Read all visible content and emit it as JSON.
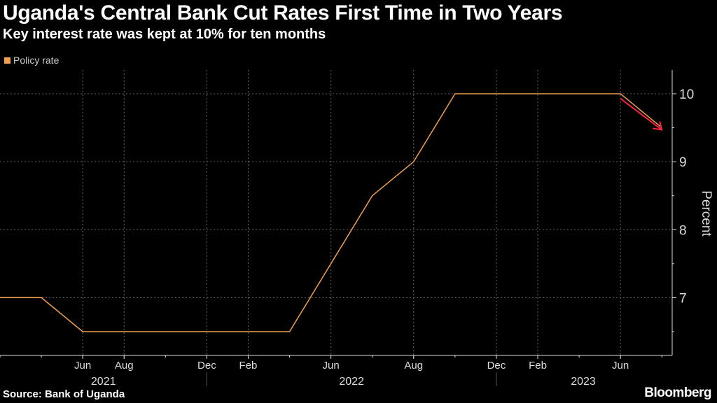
{
  "chart_data": {
    "type": "line",
    "title": "Uganda's Central Bank Cut Rates First Time in Two Years",
    "subtitle": "Key interest rate was kept at 10% for ten months",
    "legend": [
      "Policy rate"
    ],
    "legend_placement": "top-left",
    "ylabel": "Percent",
    "ylim": [
      6.15,
      10.35
    ],
    "yticks": [
      7,
      8,
      9,
      10
    ],
    "xlim": [
      0,
      32.5
    ],
    "x_unit": "period index",
    "xticks": [
      {
        "x": 4,
        "label": "Jun"
      },
      {
        "x": 6,
        "label": "Aug"
      },
      {
        "x": 10,
        "label": "Dec"
      },
      {
        "x": 12,
        "label": "Feb"
      },
      {
        "x": 16,
        "label": "Jun"
      },
      {
        "x": 20,
        "label": "Aug"
      },
      {
        "x": 24,
        "label": "Dec"
      },
      {
        "x": 26,
        "label": "Feb"
      },
      {
        "x": 30,
        "label": "Jun"
      }
    ],
    "years": [
      {
        "x": 5,
        "label": "2021"
      },
      {
        "x": 17,
        "label": "2022"
      },
      {
        "x": 28.2,
        "label": "2023"
      }
    ],
    "year_separators": [
      10,
      24
    ],
    "series": [
      {
        "name": "Policy rate",
        "color": "#f0a050",
        "points": [
          [
            0,
            7
          ],
          [
            2,
            7
          ],
          [
            4,
            6.5
          ],
          [
            14,
            6.5
          ],
          [
            18,
            8.5
          ],
          [
            20,
            9
          ],
          [
            22,
            10
          ],
          [
            30,
            10
          ],
          [
            32,
            9.5
          ]
        ]
      }
    ],
    "annotation_arrow": {
      "from": [
        30,
        9.93
      ],
      "to": [
        32,
        9.47
      ],
      "color": "#ff2040"
    },
    "grid": true
  },
  "footer": {
    "source": "Source: Bank of Uganda",
    "brand": "Bloomberg"
  }
}
